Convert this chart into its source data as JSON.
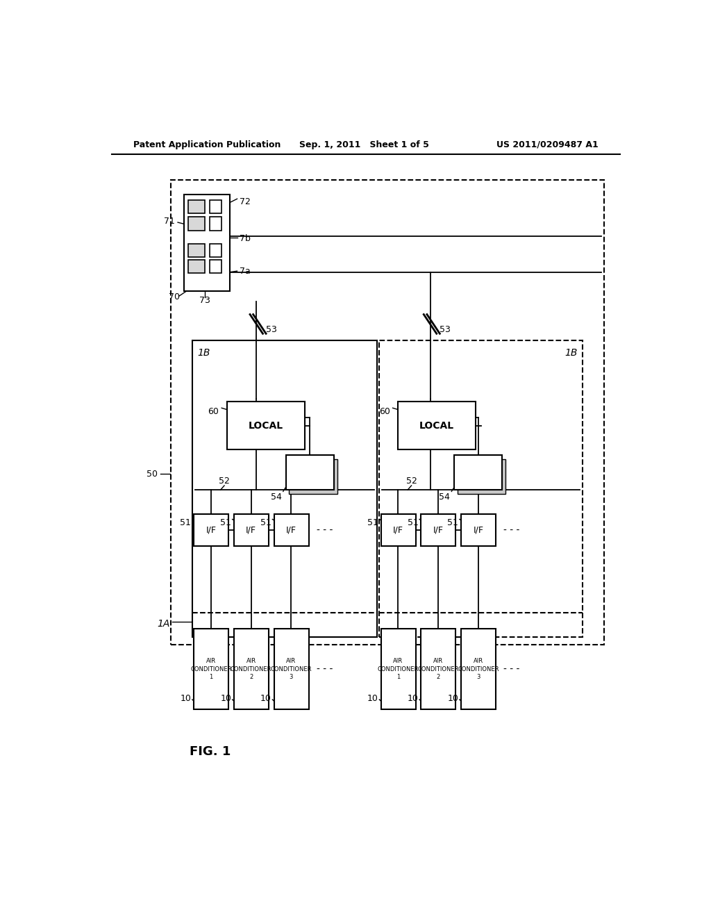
{
  "bg_color": "#ffffff",
  "header_left": "Patent Application Publication",
  "header_center": "Sep. 1, 2011   Sheet 1 of 5",
  "header_right": "US 2011/0209487 A1",
  "fig_label": "FIG. 1"
}
